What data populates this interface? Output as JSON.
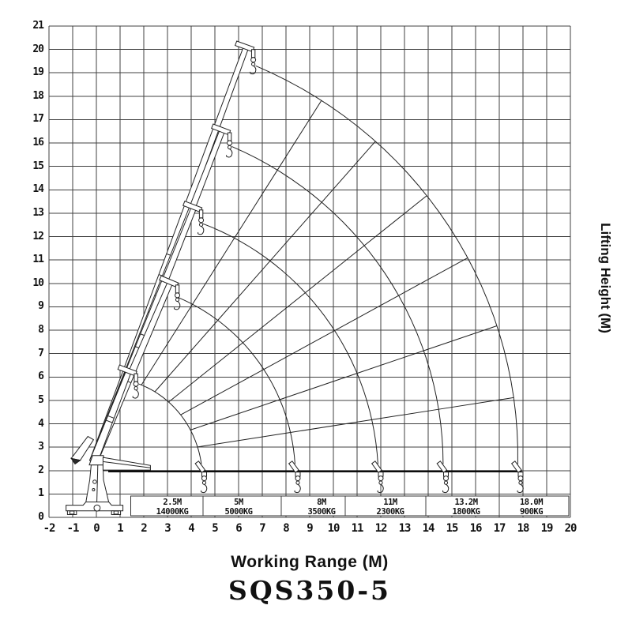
{
  "chart_data": {
    "type": "line",
    "title": "SQS350-5",
    "xlabel": "Working Range (M)",
    "ylabel": "Lifting Height (M)",
    "xlim": [
      -2,
      20
    ],
    "ylim": [
      0,
      21
    ],
    "grid": true,
    "grid_color": "#404040",
    "line_color": "#222222",
    "x_ticks": [
      -2,
      -1,
      0,
      1,
      2,
      3,
      4,
      5,
      6,
      7,
      8,
      9,
      10,
      11,
      12,
      13,
      14,
      15,
      16,
      17,
      18,
      19,
      20
    ],
    "y_ticks": [
      0,
      1,
      2,
      3,
      4,
      5,
      6,
      7,
      8,
      9,
      10,
      11,
      12,
      13,
      14,
      15,
      16,
      17,
      18,
      19,
      20,
      21
    ],
    "pivot": [
      -0.2,
      2.3
    ],
    "ground_line": {
      "y": 1.97,
      "x_start": 0.5,
      "x_end": 17.95
    },
    "radial_angles_deg": [
      9,
      19,
      29,
      39,
      49,
      58
    ],
    "capacity_band": {
      "x_start": 1.45,
      "x_end": 19.93,
      "y_bottom": 0.06,
      "y_top": 0.92,
      "dividers_x": [
        4.5,
        7.8,
        10.5,
        13.9,
        17.0
      ]
    },
    "capacities": [
      {
        "radius_label": "2.5M",
        "capacity_label": "14000KG",
        "radius_m": 2.5,
        "capacity_kg": 14000,
        "label_x": 3.2
      },
      {
        "radius_label": "5M",
        "capacity_label": "5000KG",
        "radius_m": 5,
        "capacity_kg": 5000,
        "label_x": 6.0,
        "boom_tip": [
          1.35,
          6.2
        ],
        "arc_start": [
          1.8,
          5.7
        ],
        "ground_tip_x": 4.55
      },
      {
        "radius_label": "8M",
        "capacity_label": "3500KG",
        "radius_m": 8,
        "capacity_kg": 3500,
        "label_x": 9.5,
        "boom_tip": [
          3.1,
          10.0
        ],
        "arc_start": [
          3.45,
          9.4
        ],
        "ground_tip_x": 8.5
      },
      {
        "radius_label": "11M",
        "capacity_label": "2300KG",
        "radius_m": 11,
        "capacity_kg": 2300,
        "label_x": 12.4,
        "boom_tip": [
          4.1,
          13.2
        ],
        "arc_start": [
          4.5,
          12.55
        ],
        "ground_tip_x": 12.0
      },
      {
        "radius_label": "13.2M",
        "capacity_label": "1800KG",
        "radius_m": 13.2,
        "capacity_kg": 1800,
        "label_x": 15.6,
        "boom_tip": [
          5.3,
          16.5
        ],
        "arc_start": [
          5.72,
          15.85
        ],
        "ground_tip_x": 14.75
      },
      {
        "radius_label": "18.0M",
        "capacity_label": "900KG",
        "radius_m": 18.0,
        "capacity_kg": 900,
        "label_x": 18.35,
        "boom_tip": [
          6.3,
          20.05
        ],
        "arc_start": [
          6.72,
          19.3
        ],
        "ground_tip_x": 17.9
      }
    ],
    "crane_figure": {
      "polygons": [
        {
          "name": "base-plate",
          "pts": [
            [
              -1.28,
              0.28
            ],
            [
              1.12,
              0.28
            ],
            [
              1.12,
              0.52
            ],
            [
              0.64,
              0.52
            ],
            [
              0.52,
              0.66
            ],
            [
              -0.44,
              0.66
            ],
            [
              -0.56,
              0.52
            ],
            [
              -1.28,
              0.52
            ]
          ]
        },
        {
          "name": "foot-left",
          "pts": [
            [
              -1.22,
              0.12
            ],
            [
              -0.84,
              0.12
            ],
            [
              -0.84,
              0.28
            ],
            [
              -1.22,
              0.28
            ]
          ]
        },
        {
          "name": "foot-left-pad",
          "pts": [
            [
              -1.12,
              0.14
            ],
            [
              -0.94,
              0.14
            ],
            [
              -0.94,
              0.27
            ],
            [
              -1.12,
              0.27
            ]
          ]
        },
        {
          "name": "foot-right",
          "pts": [
            [
              0.64,
              0.12
            ],
            [
              1.02,
              0.12
            ],
            [
              1.02,
              0.28
            ],
            [
              0.64,
              0.28
            ]
          ]
        },
        {
          "name": "foot-right-pad",
          "pts": [
            [
              0.74,
              0.14
            ],
            [
              0.92,
              0.14
            ],
            [
              0.92,
              0.27
            ],
            [
              0.74,
              0.27
            ]
          ]
        },
        {
          "name": "column",
          "pts": [
            [
              -0.44,
              0.66
            ],
            [
              0.52,
              0.66
            ],
            [
              0.3,
              1.6
            ],
            [
              0.28,
              2.24
            ],
            [
              -0.22,
              2.24
            ],
            [
              -0.28,
              1.6
            ]
          ]
        },
        {
          "name": "turret",
          "pts": [
            [
              -0.3,
              2.24
            ],
            [
              0.36,
              2.24
            ],
            [
              0.3,
              2.64
            ],
            [
              -0.16,
              2.64
            ]
          ]
        },
        {
          "name": "boom-butt",
          "pts": [
            [
              0.28,
              2.56
            ],
            [
              2.28,
              2.22
            ],
            [
              2.28,
              2.02
            ],
            [
              0.28,
              2.02
            ]
          ]
        },
        {
          "name": "rear-blade",
          "pts": [
            [
              -1.06,
              2.52
            ],
            [
              -0.36,
              3.46
            ],
            [
              -0.12,
              3.32
            ],
            [
              -0.68,
              2.44
            ]
          ]
        }
      ],
      "filled_polygons": [
        {
          "name": "rear-wedge",
          "pts": [
            [
              -1.06,
              2.52
            ],
            [
              -0.68,
              2.44
            ],
            [
              -0.9,
              2.28
            ]
          ]
        }
      ],
      "circles": [
        {
          "c": [
            0.03,
            0.4
          ],
          "r": 0.13
        },
        {
          "c": [
            -0.07,
            1.52
          ],
          "r": 0.075
        },
        {
          "c": [
            -0.12,
            1.18
          ],
          "r": 0.05
        }
      ],
      "lines": [
        [
          [
            0.02,
            0.66
          ],
          [
            0.06,
            2.24
          ]
        ],
        [
          [
            0.3,
            2.38
          ],
          [
            2.28,
            2.12
          ]
        ]
      ],
      "boom_base": [
        -0.12,
        2.38
      ]
    }
  }
}
